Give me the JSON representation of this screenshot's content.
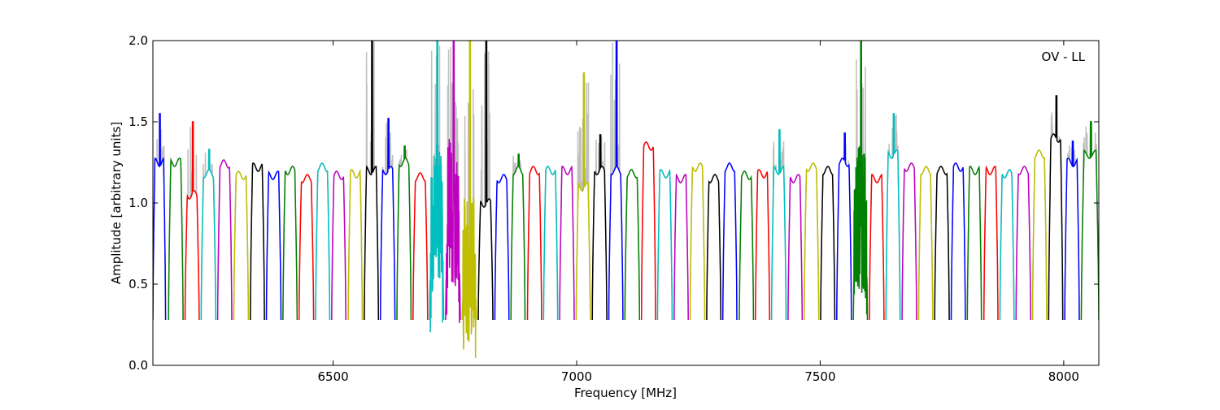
{
  "chart_data": {
    "type": "line",
    "annotation": "OV - LL",
    "xlabel": "Frequency [MHz]",
    "ylabel": "Amplitude [arbitrary units]",
    "xlim": [
      6130,
      8072
    ],
    "ylim": [
      0.0,
      2.0
    ],
    "x_ticks": [
      6500,
      7000,
      7500,
      8000
    ],
    "x_tick_labels": [
      "6500",
      "7000",
      "7500",
      "8000"
    ],
    "y_ticks": [
      0.0,
      0.5,
      1.0,
      1.5,
      2.0
    ],
    "y_tick_labels": [
      "0.0",
      "0.5",
      "1.0",
      "1.5",
      "2.0"
    ],
    "grid": false,
    "raw_color": "#bfbfbf",
    "color_cycle": [
      "#0000ff",
      "#008000",
      "#ff0000",
      "#00bfbf",
      "#bf00bf",
      "#bfbf00",
      "#000000"
    ],
    "spectral_windows": [
      {
        "x0": 6130,
        "x1": 6156,
        "level": 1.25,
        "peak": 1.55
      },
      {
        "x0": 6162,
        "x1": 6192,
        "level": 1.25
      },
      {
        "x0": 6196,
        "x1": 6225,
        "level": 1.05,
        "peak": 1.5
      },
      {
        "x0": 6229,
        "x1": 6259,
        "level": 1.18,
        "peak": 1.33
      },
      {
        "x0": 6263,
        "x1": 6292,
        "level": 1.24
      },
      {
        "x0": 6296,
        "x1": 6326,
        "level": 1.17
      },
      {
        "x0": 6330,
        "x1": 6359,
        "level": 1.22
      },
      {
        "x0": 6363,
        "x1": 6393,
        "level": 1.17
      },
      {
        "x0": 6397,
        "x1": 6426,
        "level": 1.2
      },
      {
        "x0": 6430,
        "x1": 6460,
        "level": 1.15
      },
      {
        "x0": 6464,
        "x1": 6493,
        "level": 1.22
      },
      {
        "x0": 6497,
        "x1": 6526,
        "level": 1.17
      },
      {
        "x0": 6531,
        "x1": 6560,
        "level": 1.18
      },
      {
        "x0": 6564,
        "x1": 6593,
        "level": 1.2,
        "peak": 2.0
      },
      {
        "x0": 6597,
        "x1": 6627,
        "level": 1.2,
        "peak": 1.52
      },
      {
        "x0": 6631,
        "x1": 6660,
        "level": 1.25,
        "peak": 1.35
      },
      {
        "x0": 6664,
        "x1": 6694,
        "level": 1.16
      },
      {
        "x0": 6698,
        "x1": 6727,
        "level": 0.9,
        "peak": 2.0
      },
      {
        "x0": 6731,
        "x1": 6761,
        "level": 0.95,
        "peak": 2.0
      },
      {
        "x0": 6765,
        "x1": 6794,
        "level": 0.6,
        "peak": 2.0
      },
      {
        "x0": 6798,
        "x1": 6828,
        "level": 1.0,
        "peak": 2.0
      },
      {
        "x0": 6832,
        "x1": 6861,
        "level": 1.15
      },
      {
        "x0": 6865,
        "x1": 6894,
        "level": 1.2,
        "peak": 1.3
      },
      {
        "x0": 6899,
        "x1": 6928,
        "level": 1.2
      },
      {
        "x0": 6932,
        "x1": 6961,
        "level": 1.2
      },
      {
        "x0": 6965,
        "x1": 6995,
        "level": 1.2
      },
      {
        "x0": 6999,
        "x1": 7028,
        "level": 1.1,
        "peak": 1.8
      },
      {
        "x0": 7032,
        "x1": 7062,
        "level": 1.2,
        "peak": 1.42
      },
      {
        "x0": 7066,
        "x1": 7095,
        "level": 1.2,
        "peak": 2.0
      },
      {
        "x0": 7099,
        "x1": 7129,
        "level": 1.18
      },
      {
        "x0": 7133,
        "x1": 7162,
        "level": 1.35
      },
      {
        "x0": 7166,
        "x1": 7196,
        "level": 1.18
      },
      {
        "x0": 7200,
        "x1": 7229,
        "level": 1.15
      },
      {
        "x0": 7233,
        "x1": 7263,
        "level": 1.22
      },
      {
        "x0": 7267,
        "x1": 7296,
        "level": 1.15
      },
      {
        "x0": 7300,
        "x1": 7329,
        "level": 1.22
      },
      {
        "x0": 7334,
        "x1": 7363,
        "level": 1.17
      },
      {
        "x0": 7367,
        "x1": 7396,
        "level": 1.18
      },
      {
        "x0": 7400,
        "x1": 7430,
        "level": 1.2,
        "peak": 1.45
      },
      {
        "x0": 7434,
        "x1": 7463,
        "level": 1.15
      },
      {
        "x0": 7467,
        "x1": 7497,
        "level": 1.22
      },
      {
        "x0": 7501,
        "x1": 7530,
        "level": 1.2
      },
      {
        "x0": 7534,
        "x1": 7564,
        "level": 1.25,
        "peak": 1.43
      },
      {
        "x0": 7568,
        "x1": 7597,
        "level": 0.9,
        "peak": 2.0
      },
      {
        "x0": 7601,
        "x1": 7631,
        "level": 1.15
      },
      {
        "x0": 7635,
        "x1": 7664,
        "level": 1.3,
        "peak": 1.55
      },
      {
        "x0": 7668,
        "x1": 7698,
        "level": 1.22
      },
      {
        "x0": 7702,
        "x1": 7731,
        "level": 1.2
      },
      {
        "x0": 7735,
        "x1": 7765,
        "level": 1.2
      },
      {
        "x0": 7769,
        "x1": 7798,
        "level": 1.22
      },
      {
        "x0": 7802,
        "x1": 7831,
        "level": 1.2
      },
      {
        "x0": 7836,
        "x1": 7865,
        "level": 1.2
      },
      {
        "x0": 7869,
        "x1": 7898,
        "level": 1.18
      },
      {
        "x0": 7902,
        "x1": 7932,
        "level": 1.2
      },
      {
        "x0": 7936,
        "x1": 7965,
        "level": 1.3
      },
      {
        "x0": 7969,
        "x1": 7998,
        "level": 1.4,
        "peak": 1.66
      },
      {
        "x0": 8002,
        "x1": 8032,
        "level": 1.25,
        "peak": 1.38
      },
      {
        "x0": 8036,
        "x1": 8072,
        "level": 1.3,
        "peak": 1.5
      }
    ]
  }
}
